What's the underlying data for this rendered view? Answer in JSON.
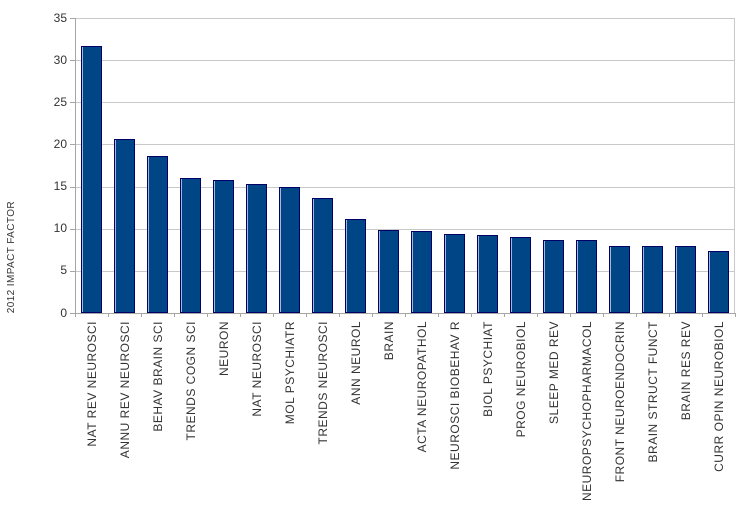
{
  "chart_data": {
    "type": "bar",
    "title": "",
    "xlabel": "",
    "ylabel": "2012 IMPACT FACTOR",
    "ylim": [
      0,
      35
    ],
    "ytick_step": 5,
    "yticks": [
      0,
      5,
      10,
      15,
      20,
      25,
      30,
      35
    ],
    "grid": true,
    "legend": false,
    "bar_color": "#004586",
    "bar_border_color": "#000066",
    "gridline_color": "#c9c9c9",
    "axis_color": "#a6a6a6",
    "categories": [
      "NAT REV NEUROSCI",
      "ANNU REV NEUROSCI",
      "BEHAV BRAIN SCI",
      "TRENDS COGN SCI",
      "NEURON",
      "NAT NEUROSCI",
      "MOL PSYCHIATR",
      "TRENDS NEUROSCI",
      "ANN NEUROL",
      "BRAIN",
      "ACTA NEUROPATHOL",
      "NEUROSCI BIOBEHAV R",
      "BIOL PSYCHIAT",
      "PROG NEUROBIOL",
      "SLEEP MED REV",
      "NEUROPSYCHOPHARMACOL",
      "FRONT NEUROENDOCRIN",
      "BRAIN STRUCT FUNCT",
      "BRAIN RES REV",
      "CURR OPIN NEUROBIOL"
    ],
    "values": [
      31.7,
      20.6,
      18.6,
      16.0,
      15.8,
      15.3,
      14.9,
      13.6,
      11.2,
      9.9,
      9.7,
      9.4,
      9.2,
      9.0,
      8.7,
      8.7,
      8.0,
      7.9,
      7.9,
      7.4
    ]
  }
}
